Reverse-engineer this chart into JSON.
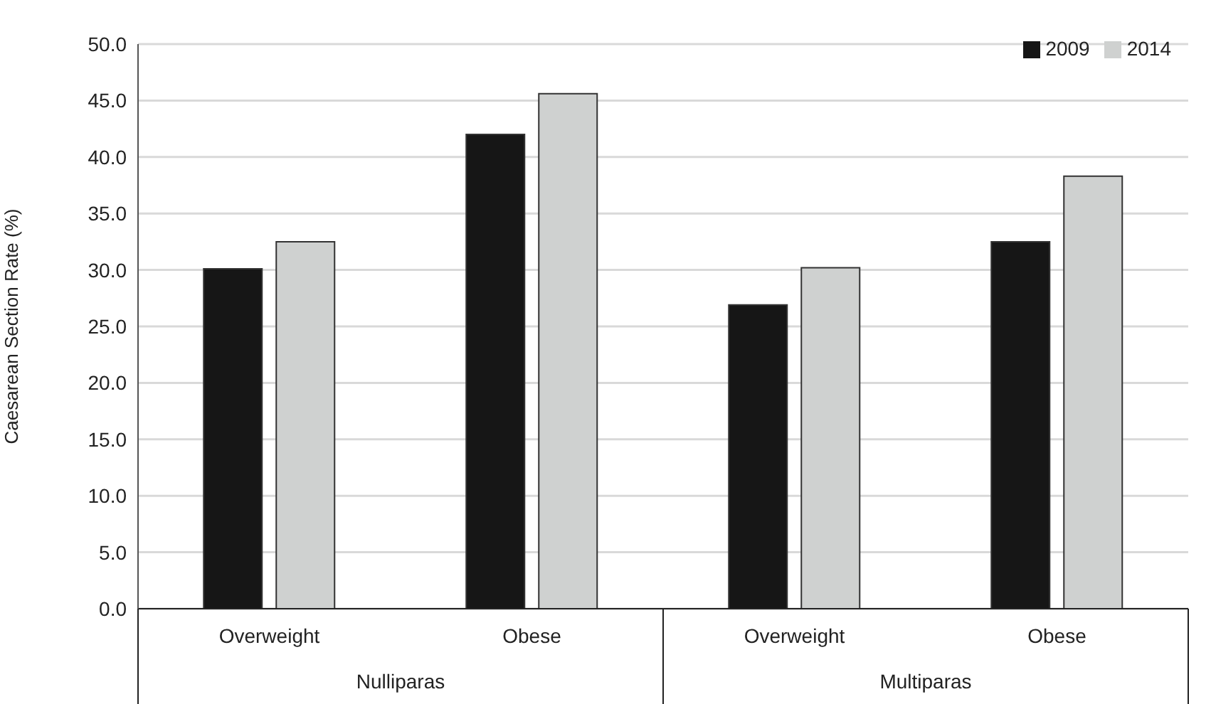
{
  "chart_data": {
    "type": "bar",
    "ylabel": "Caesarean Section Rate (%)",
    "categories": [
      "Overweight",
      "Obese",
      "Overweight",
      "Obese"
    ],
    "annotations": [
      "Nulliparas",
      "Multiparas"
    ],
    "series": [
      {
        "name": "2009",
        "color": "#161616",
        "values": [
          30.1,
          42.0,
          26.9,
          32.5
        ]
      },
      {
        "name": "2014",
        "color": "#cfd1d0",
        "values": [
          32.5,
          45.6,
          30.2,
          38.3
        ]
      }
    ],
    "ylim": [
      0,
      50
    ],
    "yticks": [
      {
        "value": 0,
        "label": "0.0"
      },
      {
        "value": 5,
        "label": "5.0"
      },
      {
        "value": 10,
        "label": "10.0"
      },
      {
        "value": 15,
        "label": "15.0"
      },
      {
        "value": 20,
        "label": "20.0"
      },
      {
        "value": 25,
        "label": "25.0"
      },
      {
        "value": 30,
        "label": "30.0"
      },
      {
        "value": 35,
        "label": "35.0"
      },
      {
        "value": 40,
        "label": "40.0"
      },
      {
        "value": 45,
        "label": "45.0"
      },
      {
        "value": 50,
        "label": "50.0"
      }
    ],
    "grid": "y",
    "legend": "top right"
  }
}
